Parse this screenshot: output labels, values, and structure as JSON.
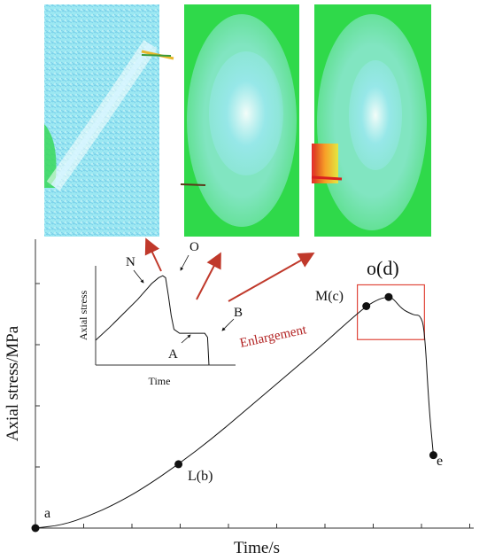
{
  "chart_data": {
    "type": "line",
    "xlabel": "Time/s",
    "ylabel": "Axial stress/MPa",
    "points": [
      {
        "label": "a",
        "x": 0.0,
        "y": 0.0
      },
      {
        "label": "L(b)",
        "x": 0.32,
        "y": 0.21
      },
      {
        "label": "M(c)",
        "x": 0.74,
        "y": 0.73
      },
      {
        "label": "o(d)",
        "x": 0.79,
        "y": 0.76
      },
      {
        "label": "e",
        "x": 0.89,
        "y": 0.24
      }
    ],
    "curve": [
      [
        0.0,
        0.0
      ],
      [
        0.06,
        0.01
      ],
      [
        0.12,
        0.04
      ],
      [
        0.18,
        0.08
      ],
      [
        0.24,
        0.13
      ],
      [
        0.32,
        0.21
      ],
      [
        0.4,
        0.3
      ],
      [
        0.48,
        0.4
      ],
      [
        0.56,
        0.5
      ],
      [
        0.64,
        0.6
      ],
      [
        0.7,
        0.68
      ],
      [
        0.74,
        0.73
      ],
      [
        0.77,
        0.755
      ],
      [
        0.79,
        0.76
      ],
      [
        0.8,
        0.755
      ],
      [
        0.82,
        0.72
      ],
      [
        0.84,
        0.705
      ],
      [
        0.85,
        0.7
      ],
      [
        0.86,
        0.7
      ],
      [
        0.87,
        0.66
      ],
      [
        0.88,
        0.4
      ],
      [
        0.89,
        0.24
      ]
    ],
    "xlim": [
      0,
      1.0
    ],
    "ylim": [
      0,
      0.95
    ],
    "enlargement_box": {
      "x": [
        0.72,
        0.87
      ],
      "y": [
        0.62,
        0.8
      ]
    },
    "enlargement_label": "Enlargement",
    "inset": {
      "xlabel": "Time",
      "ylabel": "Axial stress",
      "labels": [
        "N",
        "O",
        "A",
        "B"
      ],
      "curve": [
        [
          0.0,
          0.25
        ],
        [
          0.1,
          0.38
        ],
        [
          0.2,
          0.52
        ],
        [
          0.3,
          0.66
        ],
        [
          0.4,
          0.82
        ],
        [
          0.45,
          0.88
        ],
        [
          0.48,
          0.9
        ],
        [
          0.5,
          0.88
        ],
        [
          0.52,
          0.7
        ],
        [
          0.54,
          0.5
        ],
        [
          0.56,
          0.36
        ],
        [
          0.6,
          0.32
        ],
        [
          0.7,
          0.32
        ],
        [
          0.78,
          0.32
        ],
        [
          0.8,
          0.28
        ],
        [
          0.81,
          0.0
        ]
      ]
    }
  },
  "colors": {
    "curve": "#111111",
    "box": "#e0473b",
    "arrows": "#c0392b",
    "cyan": "#9ce8f2",
    "green": "#2fd94a"
  }
}
